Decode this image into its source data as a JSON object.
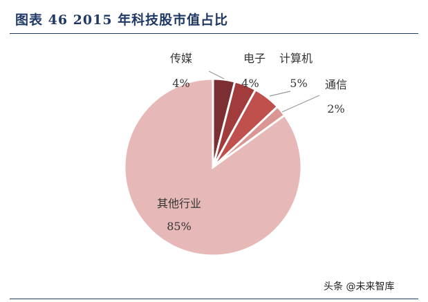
{
  "title": "图表 46 2015 年科技股市值占比",
  "watermark": "头条 @未来智库",
  "chart_data": {
    "type": "pie",
    "title": "图表 46 2015 年科技股市值占比",
    "slices": [
      {
        "name": "传媒",
        "value": 4,
        "label": "4%",
        "color": "#7b2f33"
      },
      {
        "name": "电子",
        "value": 4,
        "label": "4%",
        "color": "#a23b3b"
      },
      {
        "name": "计算机",
        "value": 5,
        "label": "5%",
        "color": "#c0504d"
      },
      {
        "name": "通信",
        "value": 2,
        "label": "2%",
        "color": "#d99694"
      },
      {
        "name": "其他行业",
        "value": 85,
        "label": "85%",
        "color": "#e6b9b8"
      }
    ]
  }
}
